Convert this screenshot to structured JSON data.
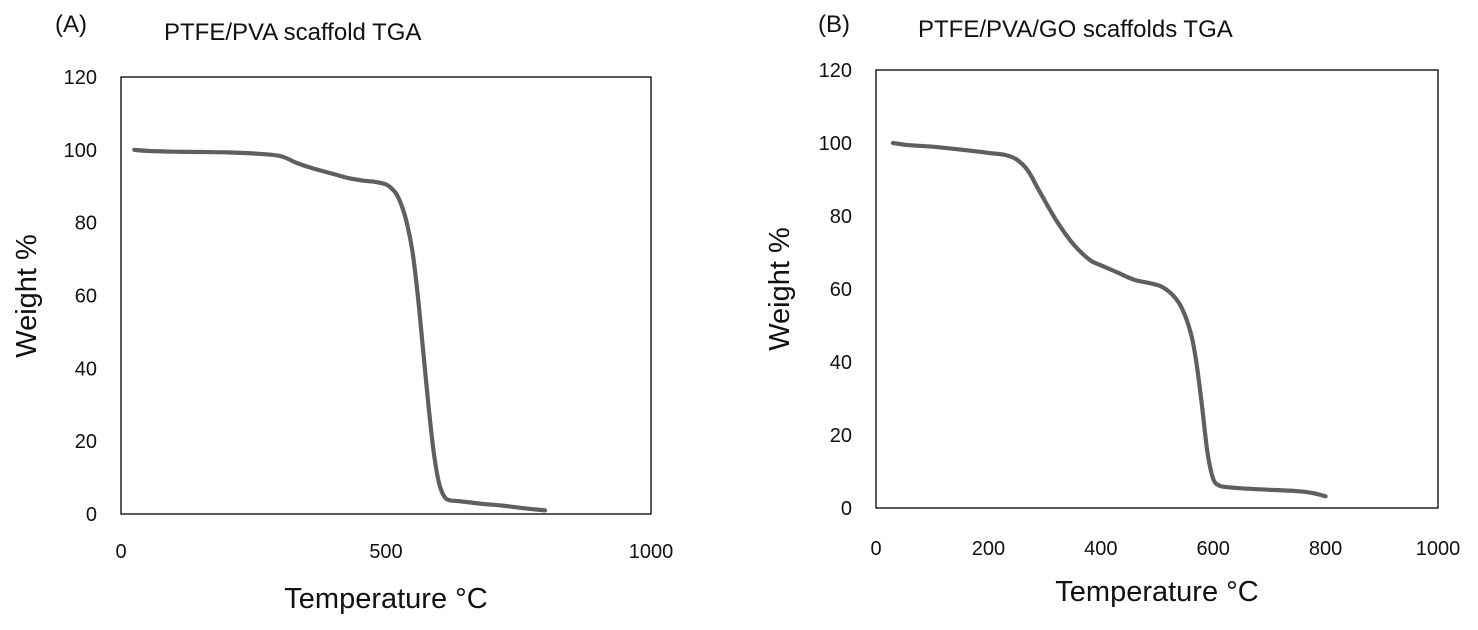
{
  "chart_data": [
    {
      "type": "line",
      "panel_label": "(A)",
      "title": "PTFE/PVA scaffold TGA",
      "xlabel": "Temperature °C",
      "ylabel": "Weight %",
      "xlim": [
        0,
        1000
      ],
      "ylim": [
        0,
        120
      ],
      "xticks": [
        0,
        500,
        1000
      ],
      "yticks": [
        0,
        20,
        40,
        60,
        80,
        100,
        120
      ],
      "grid": false,
      "series": [
        {
          "name": "PTFE/PVA",
          "color": "#5f5f5f",
          "x": [
            25,
            50,
            100,
            150,
            200,
            250,
            300,
            330,
            360,
            400,
            430,
            460,
            480,
            500,
            510,
            520,
            530,
            540,
            550,
            560,
            570,
            580,
            590,
            600,
            610,
            620,
            640,
            680,
            720,
            760,
            800
          ],
          "y": [
            100,
            99.7,
            99.5,
            99.4,
            99.3,
            99.0,
            98.3,
            96.5,
            95.0,
            93.4,
            92.2,
            91.5,
            91.2,
            90.5,
            89.5,
            87.8,
            84.5,
            79.5,
            72.0,
            60.0,
            45.0,
            30.0,
            17.0,
            8.5,
            4.8,
            3.8,
            3.5,
            2.8,
            2.3,
            1.6,
            1.0
          ]
        }
      ]
    },
    {
      "type": "line",
      "panel_label": "(B)",
      "title": "PTFE/PVA/GO scaffolds TGA",
      "xlabel": "Temperature °C",
      "ylabel": "Weight %",
      "xlim": [
        0,
        1000
      ],
      "ylim": [
        0,
        120
      ],
      "xticks": [
        0,
        200,
        400,
        600,
        800,
        1000
      ],
      "yticks": [
        0,
        20,
        40,
        60,
        80,
        100,
        120
      ],
      "grid": false,
      "series": [
        {
          "name": "PTFE/PVA/GO",
          "color": "#5f5f5f",
          "x": [
            30,
            60,
            100,
            150,
            200,
            230,
            250,
            270,
            290,
            320,
            350,
            380,
            400,
            430,
            460,
            490,
            510,
            530,
            545,
            560,
            570,
            580,
            590,
            600,
            610,
            620,
            650,
            700,
            750,
            780,
            800
          ],
          "y": [
            100,
            99.4,
            99.0,
            98.2,
            97.3,
            96.7,
            95.5,
            92.5,
            87.0,
            79.0,
            72.5,
            68.0,
            66.5,
            64.5,
            62.5,
            61.5,
            60.5,
            58.0,
            54.5,
            48.0,
            40.0,
            28.0,
            15.0,
            8.0,
            6.2,
            5.8,
            5.4,
            5.0,
            4.6,
            4.0,
            3.2
          ]
        }
      ]
    }
  ]
}
